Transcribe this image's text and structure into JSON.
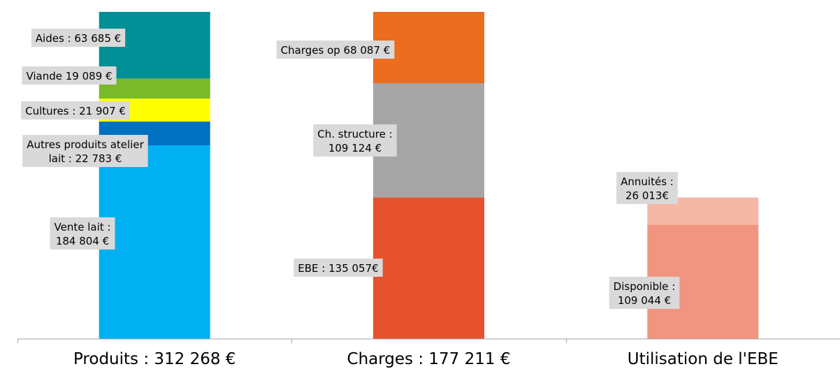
{
  "chart_data": {
    "type": "bar",
    "stacked": true,
    "categories": [
      "Produits : 312 268 €",
      "Charges : 177 211 €",
      "Utilisation de l'EBE"
    ],
    "ylim": [
      0,
      312268
    ],
    "grid": false,
    "legend": "none",
    "stacks": [
      {
        "category": "Produits : 312 268 €",
        "segments": [
          {
            "value": 184804,
            "color": "#00b0f0",
            "label": [
              "Vente lait :",
              "184 804 €"
            ]
          },
          {
            "value": 22783,
            "color": "#0070c0",
            "label": [
              "Autres produits atelier",
              "lait : 22 783 €"
            ]
          },
          {
            "value": 21907,
            "color": "#ffff00",
            "label": [
              "Cultures : 21 907 €"
            ]
          },
          {
            "value": 19089,
            "color": "#7ab929",
            "label": [
              "Viande 19 089 €"
            ]
          },
          {
            "value": 63685,
            "color": "#008f94",
            "label": [
              "Aides : 63 685 €"
            ]
          }
        ]
      },
      {
        "category": "Charges : 177 211 €",
        "segments": [
          {
            "value": 135057,
            "color": "#e6512e",
            "label": [
              "EBE : 135 057€"
            ]
          },
          {
            "value": 109124,
            "color": "#a6a6a6",
            "label": [
              "Ch. structure :",
              "109 124 €"
            ]
          },
          {
            "value": 68087,
            "color": "#ec6c20",
            "label": [
              "Charges op 68 087 €"
            ]
          }
        ]
      },
      {
        "category": "Utilisation de l'EBE",
        "segments": [
          {
            "value": 109044,
            "color": "#f19580",
            "label": [
              "Disponible :",
              "109 044 €"
            ]
          },
          {
            "value": 26013,
            "color": "#f5b7a6",
            "label": [
              "Annuités :",
              "26 013€"
            ]
          }
        ]
      }
    ]
  }
}
